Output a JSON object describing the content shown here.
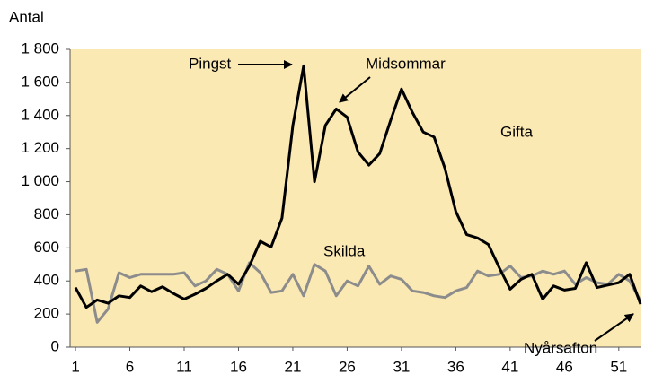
{
  "chart_data": {
    "type": "line",
    "y_label": "Antal",
    "x": [
      1,
      2,
      3,
      4,
      5,
      6,
      7,
      8,
      9,
      10,
      11,
      12,
      13,
      14,
      15,
      16,
      17,
      18,
      19,
      20,
      21,
      22,
      23,
      24,
      25,
      26,
      27,
      28,
      29,
      30,
      31,
      32,
      33,
      34,
      35,
      36,
      37,
      38,
      39,
      40,
      41,
      42,
      43,
      44,
      45,
      46,
      47,
      48,
      49,
      50,
      51,
      52,
      53
    ],
    "series": [
      {
        "name": "Gifta",
        "color": "#000000",
        "values": [
          360,
          240,
          285,
          265,
          310,
          300,
          370,
          335,
          365,
          325,
          290,
          320,
          355,
          400,
          440,
          380,
          490,
          640,
          605,
          780,
          1340,
          1700,
          1000,
          1340,
          1440,
          1390,
          1180,
          1100,
          1170,
          1370,
          1560,
          1420,
          1300,
          1270,
          1080,
          820,
          680,
          660,
          620,
          480,
          350,
          410,
          440,
          290,
          370,
          345,
          355,
          510,
          360,
          375,
          390,
          440,
          260
        ]
      },
      {
        "name": "Skilda",
        "color": "#8c8c8c",
        "values": [
          460,
          470,
          150,
          230,
          450,
          420,
          440,
          440,
          440,
          440,
          450,
          370,
          400,
          470,
          440,
          340,
          510,
          450,
          330,
          340,
          440,
          310,
          500,
          460,
          310,
          400,
          370,
          490,
          380,
          430,
          410,
          340,
          330,
          310,
          300,
          340,
          360,
          460,
          430,
          440,
          490,
          420,
          430,
          460,
          440,
          460,
          380,
          420,
          390,
          380,
          440,
          400,
          280
        ]
      }
    ],
    "annotations": [
      "Pingst",
      "Midsommar",
      "Nyårsafton"
    ],
    "xlim": [
      0.5,
      53
    ],
    "xticks": [
      1,
      6,
      11,
      16,
      21,
      26,
      31,
      36,
      41,
      46,
      51
    ],
    "ylim": [
      0,
      1800
    ],
    "yticks": [
      0,
      200,
      400,
      600,
      800,
      {
        "value": 1000,
        "label": "1 000"
      },
      {
        "value": 1200,
        "label": "1 200"
      },
      {
        "value": 1400,
        "label": "1 400"
      },
      {
        "value": 1600,
        "label": "1 600"
      },
      {
        "value": 1800,
        "label": "1 800"
      }
    ],
    "background": "#fbe9b4",
    "grid": false
  }
}
